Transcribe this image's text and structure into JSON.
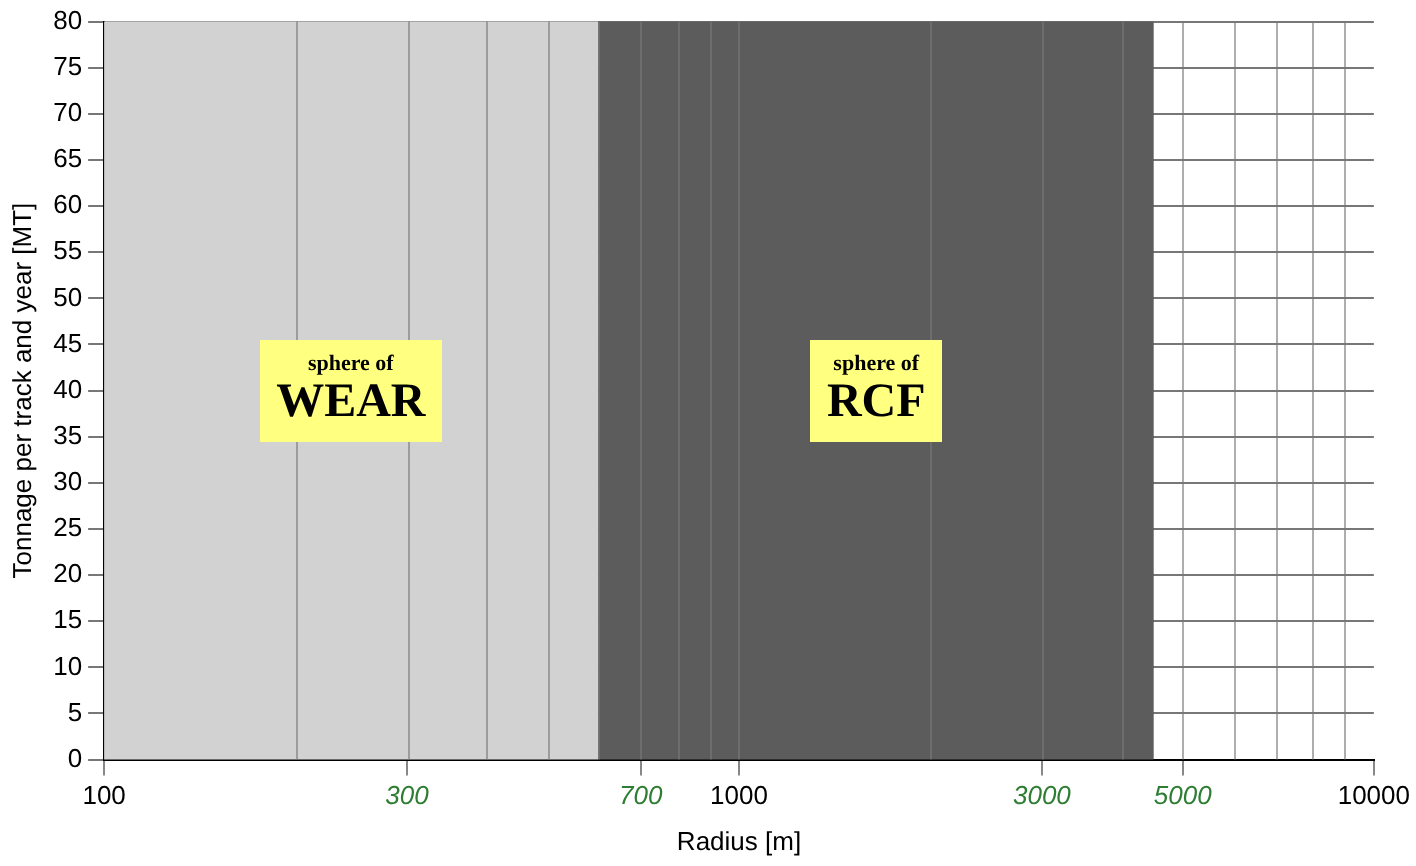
{
  "chart_data": {
    "type": "line",
    "xlabel": "Radius [m]",
    "ylabel": "Tonnage per track and year [MT]",
    "log": "x",
    "xlim": [
      100,
      10000
    ],
    "xticks": [
      100,
      300,
      700,
      1000,
      3000,
      5000,
      10000
    ],
    "ylim": [
      0,
      80
    ],
    "yticks": [
      0,
      5,
      10,
      15,
      20,
      25,
      30,
      35,
      40,
      45,
      50,
      55,
      60,
      65,
      70,
      75,
      80
    ],
    "grid": true,
    "bands": [
      {
        "axis": "x",
        "from": 100,
        "to": 600,
        "color": "#d2d2d2",
        "label": "sphere of WEAR"
      },
      {
        "axis": "x",
        "from": 600,
        "to": 4500,
        "color": "#5c5c5c",
        "label": "sphere of RCF"
      }
    ]
  }
}
